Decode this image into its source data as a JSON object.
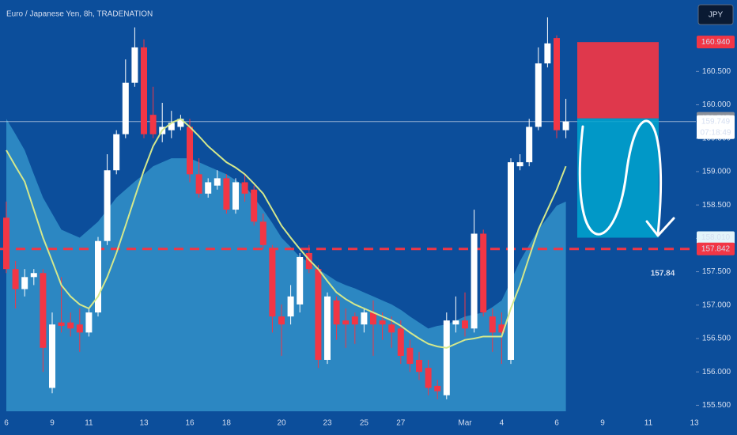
{
  "chart_data": {
    "type": "candlestick",
    "title": "Euro / Japanese Yen, 8h, TRADENATION",
    "currency": "JPY",
    "categories": [
      "6",
      null,
      null,
      null,
      null,
      "9",
      null,
      null,
      null,
      "11",
      null,
      null,
      null,
      null,
      null,
      "13",
      null,
      null,
      null,
      null,
      "16",
      null,
      null,
      null,
      "18",
      null,
      null,
      null,
      null,
      null,
      "20",
      null,
      null,
      null,
      null,
      "23",
      null,
      null,
      null,
      "25",
      null,
      null,
      null,
      "27",
      null,
      null,
      null,
      null,
      null,
      null,
      "Mar",
      null,
      null,
      null,
      "4",
      null,
      null,
      null,
      null,
      null,
      "6",
      null,
      null,
      null,
      null,
      "9",
      null,
      null,
      null,
      null,
      "11",
      null,
      null,
      null,
      null,
      "13"
    ],
    "open": [
      158.31,
      157.54,
      157.24,
      157.42,
      157.48,
      155.76,
      156.74,
      156.74,
      156.71,
      156.59,
      156.89,
      157.96,
      159.02,
      159.56,
      160.33,
      160.86,
      159.85,
      159.56,
      159.62,
      159.67,
      159.67,
      158.96,
      158.67,
      158.79,
      158.9,
      158.43,
      158.84,
      158.73,
      158.25,
      157.84,
      156.83,
      156.83,
      157.01,
      157.78,
      157.54,
      156.18,
      157.07,
      156.77,
      156.83,
      156.71,
      156.89,
      156.77,
      156.71,
      156.65,
      156.36,
      156.18,
      156.06,
      155.79,
      155.65,
      156.71,
      156.77,
      156.65,
      158.07,
      156.83,
      156.71,
      156.18,
      159.08,
      159.14,
      159.67,
      160.62,
      161.0,
      159.62,
      null,
      null,
      null,
      null,
      null,
      null,
      null,
      null,
      null,
      null,
      null,
      null,
      null,
      null
    ],
    "high": [
      158.55,
      157.66,
      157.54,
      157.54,
      157.54,
      156.89,
      157.42,
      156.89,
      156.95,
      156.95,
      158.02,
      159.26,
      159.62,
      160.68,
      161.16,
      160.98,
      160.27,
      160.03,
      159.91,
      159.85,
      159.79,
      159.2,
      158.9,
      159.02,
      158.96,
      158.9,
      158.96,
      158.79,
      158.37,
      157.9,
      157.01,
      157.3,
      157.78,
      157.9,
      157.6,
      157.19,
      157.13,
      156.95,
      156.89,
      156.95,
      157.07,
      156.89,
      156.83,
      156.77,
      156.48,
      156.3,
      156.18,
      155.88,
      156.89,
      157.13,
      157.19,
      158.43,
      158.13,
      156.95,
      156.89,
      159.2,
      159.26,
      159.79,
      160.86,
      161.31,
      161.04,
      160.09,
      null,
      null,
      null,
      null,
      null,
      null,
      null,
      null,
      null,
      null,
      null,
      null,
      null,
      null
    ],
    "low": [
      157.48,
      156.95,
      157.13,
      157.3,
      156.0,
      155.68,
      156.59,
      156.53,
      156.3,
      156.53,
      156.83,
      157.9,
      158.96,
      159.5,
      160.27,
      159.5,
      159.5,
      159.44,
      159.5,
      159.62,
      158.84,
      158.61,
      158.61,
      158.73,
      158.37,
      158.37,
      158.55,
      158.19,
      157.84,
      156.59,
      156.24,
      156.71,
      156.89,
      157.48,
      156.06,
      156.12,
      156.48,
      156.36,
      156.42,
      156.59,
      156.24,
      156.48,
      156.36,
      156.12,
      156.0,
      155.88,
      155.65,
      155.59,
      155.59,
      156.59,
      156.53,
      156.59,
      156.83,
      156.3,
      156.12,
      156.12,
      159.02,
      159.08,
      159.62,
      160.56,
      159.5,
      159.5,
      null,
      null,
      null,
      null,
      null,
      null,
      null,
      null,
      null,
      null,
      null,
      null,
      null,
      null
    ],
    "close": [
      157.54,
      157.24,
      157.42,
      157.48,
      156.36,
      156.71,
      156.69,
      156.65,
      156.59,
      156.89,
      157.96,
      159.02,
      159.56,
      160.33,
      160.86,
      159.56,
      159.56,
      159.67,
      159.73,
      159.79,
      158.96,
      158.67,
      158.84,
      158.9,
      158.43,
      158.84,
      158.67,
      158.25,
      157.9,
      156.83,
      156.71,
      157.13,
      157.72,
      157.54,
      156.18,
      157.13,
      156.71,
      156.71,
      156.71,
      156.89,
      156.71,
      156.71,
      156.59,
      156.24,
      156.12,
      156.0,
      155.76,
      155.71,
      156.77,
      156.77,
      156.65,
      158.07,
      156.89,
      156.59,
      156.59,
      159.14,
      159.14,
      159.67,
      160.62,
      160.92,
      159.62,
      159.75,
      null,
      null,
      null,
      null,
      null,
      null,
      null,
      null,
      null,
      null,
      null,
      null,
      null,
      null
    ],
    "up_color": "#ffffff",
    "down_color": "#f23645",
    "ma": {
      "color": "#d4e88c",
      "values": [
        159.32,
        159.08,
        158.85,
        158.43,
        158.01,
        157.66,
        157.3,
        157.13,
        157.01,
        156.95,
        157.13,
        157.42,
        157.78,
        158.19,
        158.61,
        159.02,
        159.38,
        159.62,
        159.73,
        159.79,
        159.67,
        159.53,
        159.38,
        159.26,
        159.14,
        159.06,
        158.96,
        158.82,
        158.67,
        158.43,
        158.19,
        158.01,
        157.84,
        157.68,
        157.54,
        157.36,
        157.19,
        157.09,
        157.01,
        156.95,
        156.89,
        156.83,
        156.77,
        156.69,
        156.59,
        156.5,
        156.42,
        156.38,
        156.36,
        156.42,
        156.48,
        156.5,
        156.53,
        156.53,
        156.53,
        156.95,
        157.3,
        157.72,
        158.13,
        158.43,
        158.73,
        159.08,
        null,
        null,
        null,
        null,
        null,
        null,
        null,
        null,
        null,
        null,
        null,
        null,
        null,
        null
      ]
    },
    "band": {
      "color": "#3596cc",
      "values": [
        159.79,
        159.56,
        159.32,
        158.96,
        158.61,
        158.37,
        158.13,
        158.07,
        158.01,
        158.13,
        158.25,
        158.43,
        158.61,
        158.73,
        158.85,
        158.96,
        159.08,
        159.14,
        159.2,
        159.2,
        159.2,
        159.14,
        159.08,
        159.02,
        158.96,
        158.87,
        158.79,
        158.61,
        158.43,
        158.23,
        158.01,
        157.87,
        157.72,
        157.64,
        157.54,
        157.45,
        157.36,
        157.3,
        157.25,
        157.19,
        157.13,
        157.07,
        157.01,
        156.93,
        156.83,
        156.74,
        156.65,
        156.69,
        156.71,
        156.77,
        156.83,
        156.86,
        156.89,
        156.97,
        157.07,
        157.36,
        157.66,
        157.9,
        158.13,
        158.31,
        158.49,
        158.55,
        null,
        null,
        null,
        null,
        null,
        null,
        null,
        null,
        null,
        null,
        null,
        null,
        null,
        null
      ]
    },
    "ylim": [
      155.41,
      161.57
    ],
    "yticks": [
      {
        "value": 155.5,
        "label": "155.500"
      },
      {
        "value": 156,
        "label": "156.000"
      },
      {
        "value": 156.5,
        "label": "156.500"
      },
      {
        "value": 157,
        "label": "157.000"
      },
      {
        "value": 157.5,
        "label": "157.500"
      },
      {
        "value": 158,
        "label": "158.000"
      },
      {
        "value": 158.5,
        "label": "158.500"
      },
      {
        "value": 159,
        "label": "159.000"
      },
      {
        "value": 159.5,
        "label": "159.500"
      },
      {
        "value": 160,
        "label": "160.000"
      },
      {
        "value": 160.5,
        "label": "160.500"
      }
    ],
    "position": {
      "stop": {
        "value": 160.94,
        "label": "160.940",
        "color": "#f23645"
      },
      "entry": {
        "value": 159.797,
        "label": "159.797",
        "color": "#8a8f99"
      },
      "target": {
        "value": 158.01,
        "label": "158.010",
        "color": "#00a6cf"
      }
    },
    "current": {
      "value": 159.749,
      "label": "159.749"
    },
    "countdown": "07:18:49",
    "level": {
      "value": 157.842,
      "label": "157.842",
      "color": "#f23645"
    },
    "annotation": "157.84"
  }
}
